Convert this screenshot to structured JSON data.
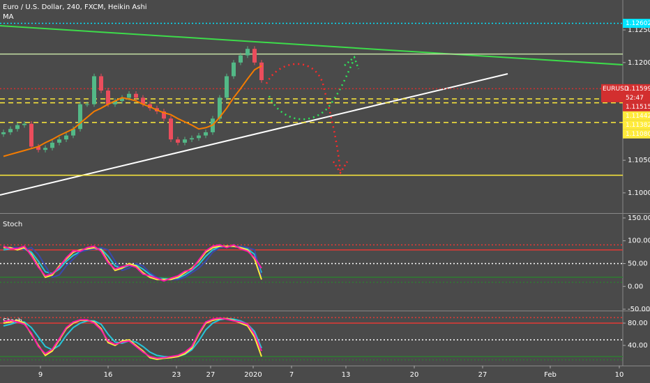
{
  "chart_data": [
    {
      "type": "candlestick",
      "title": "Euro / U.S. Dollar, 240, FXCM, Heikin Ashi",
      "up_color": "#53b987",
      "down_color": "#eb4d5c",
      "open": [
        1.109,
        1.1093,
        1.1098,
        1.1104,
        1.1106,
        1.1071,
        1.1066,
        1.1069,
        1.1077,
        1.1082,
        1.1088,
        1.1098,
        1.1136,
        1.1136,
        1.1179,
        1.1157,
        1.1136,
        1.1141,
        1.1146,
        1.1152,
        1.1146,
        1.1136,
        1.113,
        1.1125,
        1.1114,
        1.1082,
        1.1077,
        1.1082,
        1.1084,
        1.1088,
        1.1093,
        1.1114,
        1.1146,
        1.1179,
        1.12,
        1.1211,
        1.1221,
        1.12
      ],
      "high": [
        1.1097,
        1.1102,
        1.1108,
        1.111,
        1.111,
        1.1075,
        1.1073,
        1.1081,
        1.1086,
        1.1092,
        1.1102,
        1.114,
        1.114,
        1.1183,
        1.1183,
        1.1161,
        1.1145,
        1.115,
        1.1156,
        1.1156,
        1.115,
        1.114,
        1.1134,
        1.1129,
        1.1118,
        1.1086,
        1.1086,
        1.1088,
        1.1092,
        1.1097,
        1.1118,
        1.115,
        1.1183,
        1.1204,
        1.1215,
        1.1225,
        1.1225,
        1.1204
      ],
      "low": [
        1.1086,
        1.1089,
        1.1094,
        1.11,
        1.1067,
        1.1062,
        1.1062,
        1.1065,
        1.1073,
        1.1078,
        1.1084,
        1.1094,
        1.1132,
        1.1132,
        1.1153,
        1.1132,
        1.1132,
        1.1137,
        1.1142,
        1.1142,
        1.1132,
        1.1126,
        1.1121,
        1.111,
        1.1078,
        1.1073,
        1.1073,
        1.1078,
        1.108,
        1.1084,
        1.1089,
        1.111,
        1.1142,
        1.1175,
        1.1196,
        1.1207,
        1.1196,
        1.1169
      ],
      "close": [
        1.1093,
        1.1098,
        1.1104,
        1.1106,
        1.1071,
        1.1066,
        1.1069,
        1.1077,
        1.1082,
        1.1088,
        1.1098,
        1.1136,
        1.1136,
        1.1179,
        1.1157,
        1.1136,
        1.1141,
        1.1146,
        1.1152,
        1.1146,
        1.1136,
        1.113,
        1.1125,
        1.1114,
        1.1082,
        1.1077,
        1.1082,
        1.1084,
        1.1088,
        1.1093,
        1.1114,
        1.1146,
        1.1179,
        1.12,
        1.1211,
        1.1221,
        1.12,
        1.1173
      ],
      "series": [
        {
          "name": "MA",
          "color": "#f57c00",
          "values": [
            1.1056,
            1.1059,
            1.1062,
            1.1065,
            1.1068,
            1.1071,
            1.1077,
            1.1082,
            1.1088,
            1.1093,
            1.1098,
            1.1107,
            1.1116,
            1.1125,
            1.113,
            1.1136,
            1.1141,
            1.1146,
            1.1144,
            1.1141,
            1.1136,
            1.1132,
            1.1127,
            1.1123,
            1.112,
            1.1114,
            1.1109,
            1.1104,
            1.1098,
            1.11,
            1.1104,
            1.1116,
            1.113,
            1.1146,
            1.116,
            1.1175,
            1.1189,
            1.1195
          ]
        }
      ],
      "xlim": [
        -0.5,
        88.8
      ],
      "xticks": [
        {
          "value": 5.3,
          "label": "9"
        },
        {
          "value": 15,
          "label": "16"
        },
        {
          "value": 24.8,
          "label": "23"
        },
        {
          "value": 29.7,
          "label": "27"
        },
        {
          "value": 35.8,
          "label": "2020"
        },
        {
          "value": 41.3,
          "label": "7"
        },
        {
          "value": 49.1,
          "label": "13"
        },
        {
          "value": 58.9,
          "label": "20"
        },
        {
          "value": 68.7,
          "label": "27"
        },
        {
          "value": 78.4,
          "label": "Feb"
        },
        {
          "value": 88.3,
          "label": "10"
        }
      ],
      "ylim": [
        1.097,
        1.1296
      ],
      "yticks": [
        {
          "value": 1.1,
          "label": "1.10000"
        },
        {
          "value": 1.105,
          "label": "1.10500"
        },
        {
          "value": 1.12,
          "label": "1.12000"
        },
        {
          "value": 1.125,
          "label": "1.12500"
        }
      ],
      "levels": [
        {
          "value": 1.12602,
          "color": "#00e5ff",
          "style": "dotted"
        },
        {
          "value": 1.1213,
          "color": "#c5e1a5",
          "style": "solid"
        },
        {
          "value": 1.11599,
          "color": "#d32f2f",
          "style": "dotted"
        },
        {
          "value": 1.11442,
          "color": "#ffeb3b",
          "style": "dashed"
        },
        {
          "value": 1.11382,
          "color": "#ffeb3b",
          "style": "dashed"
        },
        {
          "value": 1.1108,
          "color": "#ffeb3b",
          "style": "dashed"
        },
        {
          "value": 1.1027,
          "color": "#ffeb3b",
          "style": "solid"
        }
      ],
      "price_labels": [
        {
          "value": 1.12602,
          "label": "1.12602",
          "color": "#00e5ff"
        },
        {
          "value": 1.11599,
          "symbol": "EURUSD",
          "label": "1.11599",
          "countdown": "52:47",
          "color": "#d32f2f"
        },
        {
          "value": 1.11515,
          "label": "1.11515",
          "color": "#d32f2f"
        },
        {
          "value": 1.11442,
          "label": "1.11442",
          "color": "#ffeb3b"
        },
        {
          "value": 1.11382,
          "label": "1.11382",
          "color": "#ffeb3b"
        },
        {
          "value": 1.1108,
          "label": "1.11080",
          "color": "#ffeb3b"
        }
      ]
    },
    {
      "type": "line",
      "title": "Stoch",
      "xlim": [
        -0.5,
        88.8
      ],
      "ylim": [
        -51.5,
        157.6
      ],
      "yticks": [
        {
          "value": 150,
          "label": "150.00"
        },
        {
          "value": 100,
          "label": "100.00"
        },
        {
          "value": 50,
          "label": "50.00"
        },
        {
          "value": 0,
          "label": "0.00"
        },
        {
          "value": -50,
          "label": "-50.00"
        }
      ],
      "levels": [
        {
          "value": 91,
          "color": "#e53935",
          "style": "dotted"
        },
        {
          "value": 80,
          "color": "#e53935",
          "style": "solid"
        },
        {
          "value": 50,
          "color": "#ffffff",
          "style": "dotted"
        },
        {
          "value": 20,
          "color": "#2e7d32",
          "style": "solid"
        },
        {
          "value": 9,
          "color": "#2e7d32",
          "style": "dotted"
        }
      ],
      "series": [
        {
          "color": "#26c6da",
          "values": [
            80,
            82,
            84,
            82,
            75,
            55,
            32,
            28,
            38,
            55,
            68,
            76,
            80,
            82,
            82,
            66,
            45,
            40,
            46,
            47,
            38,
            26,
            19,
            17,
            16,
            18,
            25,
            35,
            48,
            66,
            80,
            86,
            88,
            88,
            86,
            82,
            70,
            30
          ]
        },
        {
          "color": "#3949ab",
          "values": [
            85,
            85,
            85,
            80,
            85,
            70,
            45,
            20,
            25,
            45,
            60,
            75,
            80,
            82,
            85,
            80,
            55,
            35,
            40,
            50,
            45,
            30,
            20,
            15,
            15,
            15,
            20,
            30,
            40,
            55,
            75,
            85,
            88,
            88,
            88,
            85,
            80,
            20
          ]
        },
        {
          "color": "#ffeb3b",
          "values": [
            85,
            85,
            80,
            85,
            70,
            45,
            20,
            25,
            45,
            60,
            75,
            80,
            82,
            85,
            80,
            55,
            35,
            40,
            50,
            45,
            30,
            20,
            15,
            15,
            15,
            20,
            30,
            40,
            55,
            75,
            85,
            88,
            88,
            88,
            85,
            80,
            60,
            15
          ]
        },
        {
          "color": "#ff1aa8",
          "values": [
            88,
            82,
            83,
            88,
            67,
            42,
            23,
            28,
            42,
            63,
            78,
            77,
            85,
            88,
            77,
            52,
            38,
            43,
            47,
            42,
            27,
            23,
            18,
            12,
            18,
            23,
            33,
            37,
            58,
            78,
            88,
            91,
            85,
            91,
            82,
            77,
            63,
            40
          ]
        }
      ]
    },
    {
      "type": "line",
      "title": "Stoch",
      "xlim": [
        -0.5,
        88.8
      ],
      "ylim": [
        10,
        100
      ],
      "yticks": [
        {
          "value": 80,
          "label": "80.00"
        },
        {
          "value": 40,
          "label": "40.00"
        }
      ],
      "levels": [
        {
          "value": 90,
          "color": "#e53935",
          "style": "dotted"
        },
        {
          "value": 80,
          "color": "#e53935",
          "style": "solid"
        },
        {
          "value": 50,
          "color": "#ffffff",
          "style": "dotted"
        },
        {
          "value": 20,
          "color": "#2e7d32",
          "style": "solid"
        },
        {
          "value": 14,
          "color": "#2e7d32",
          "style": "dotted"
        }
      ],
      "series": [
        {
          "color": "#26c6da",
          "values": [
            75,
            78,
            82,
            82,
            72,
            55,
            38,
            32,
            40,
            58,
            72,
            80,
            84,
            84,
            78,
            60,
            46,
            44,
            48,
            46,
            38,
            28,
            22,
            20,
            19,
            20,
            24,
            32,
            48,
            68,
            80,
            86,
            88,
            87,
            84,
            78,
            65,
            35
          ]
        },
        {
          "color": "#ffeb3b",
          "values": [
            80,
            82,
            85,
            80,
            60,
            40,
            22,
            30,
            50,
            70,
            80,
            85,
            85,
            82,
            70,
            45,
            40,
            48,
            50,
            40,
            30,
            18,
            15,
            17,
            18,
            20,
            25,
            35,
            60,
            80,
            85,
            88,
            88,
            85,
            80,
            75,
            55,
            20
          ]
        },
        {
          "color": "#ff1aa8",
          "values": [
            83,
            85,
            82,
            78,
            62,
            38,
            25,
            33,
            52,
            72,
            82,
            86,
            86,
            80,
            68,
            48,
            42,
            46,
            48,
            38,
            28,
            20,
            17,
            18,
            20,
            22,
            28,
            38,
            62,
            82,
            87,
            89,
            87,
            84,
            82,
            78,
            60,
            30
          ]
        }
      ]
    }
  ]
}
